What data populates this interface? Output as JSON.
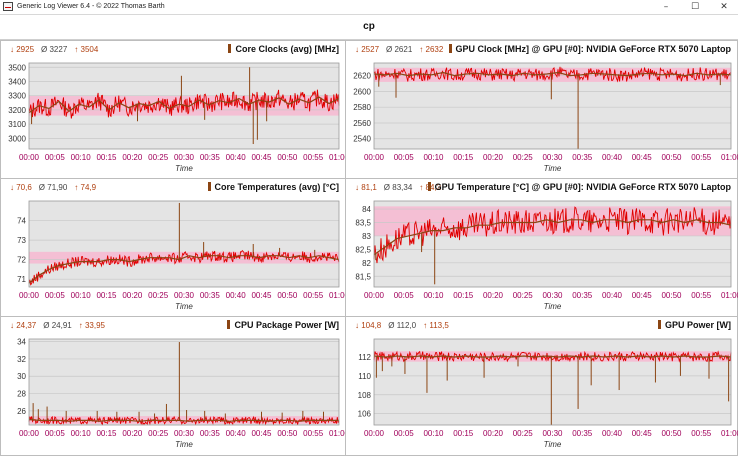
{
  "window": {
    "title": "Generic Log Viewer 6.4 - © 2022 Thomas Barth",
    "minimize_icon": "minimize-icon",
    "maximize_icon": "maximize-icon",
    "close_icon": "close-icon"
  },
  "page_title": "cp",
  "colors": {
    "series_line": "#e00000",
    "avg_line": "#8B4513",
    "band": "#f4bfd4",
    "plot_bg": "#e4e4e4",
    "grid": "#c8c8c8",
    "tick_text": "#a0005a",
    "stat_text": "#b04010"
  },
  "chart_data": [
    {
      "type": "line",
      "title": "Core Clocks (avg) [MHz]",
      "stats": {
        "min": "↓ 2925",
        "avg": "Ø 3227",
        "max": "↑ 3504"
      },
      "xlabel": "Time",
      "xticks": [
        "00:00",
        "00:05",
        "00:10",
        "00:15",
        "00:20",
        "00:25",
        "00:30",
        "00:35",
        "00:40",
        "00:45",
        "00:50",
        "00:55",
        "01:00"
      ],
      "yticks": [
        3000,
        3100,
        3200,
        3300,
        3400,
        3500
      ],
      "ytick_labels": [
        "3000",
        "3100",
        "3200",
        "3300",
        "3400",
        "3500"
      ],
      "ylim": [
        2925,
        3530
      ],
      "x_range_min": [
        0,
        60
      ],
      "band": [
        3160,
        3300
      ],
      "series": [
        {
          "values": [
            3180,
            3230,
            3210,
            3260,
            3190,
            3240,
            3220,
            3270,
            3200,
            3250,
            3215,
            3245,
            3230,
            3260,
            3210,
            3240,
            3225,
            3270,
            3235,
            3265,
            3250,
            3280,
            3240,
            3270,
            3255,
            3285,
            3240,
            3275,
            3250,
            3290,
            3245,
            3280
          ]
        }
      ],
      "spikes": [
        [
          0.5,
          3100
        ],
        [
          29.5,
          3440
        ],
        [
          42.7,
          3500
        ],
        [
          43.4,
          2960
        ],
        [
          44.2,
          2990
        ],
        [
          46,
          3120
        ],
        [
          21,
          3120
        ],
        [
          34,
          3130
        ]
      ]
    },
    {
      "type": "line",
      "title": "GPU Clock [MHz] @ GPU [#0]: NVIDIA GeForce RTX 5070 Laptop",
      "stats": {
        "min": "↓ 2527",
        "avg": "Ø 2621",
        "max": "↑ 2632"
      },
      "xlabel": "Time",
      "xticks": [
        "00:00",
        "00:05",
        "00:10",
        "00:15",
        "00:20",
        "00:25",
        "00:30",
        "00:35",
        "00:40",
        "00:45",
        "00:50",
        "00:55",
        "01:00"
      ],
      "yticks": [
        2540,
        2560,
        2580,
        2600,
        2620
      ],
      "ytick_labels": [
        "2540",
        "2560",
        "2580",
        "2600",
        "2620"
      ],
      "ylim": [
        2527,
        2636
      ],
      "x_range_min": [
        0,
        60
      ],
      "band": [
        2612,
        2630
      ],
      "series": [
        {
          "values": [
            2622,
            2621,
            2623,
            2620,
            2622,
            2621,
            2624,
            2620,
            2622,
            2623,
            2621,
            2622,
            2620,
            2623,
            2621,
            2622,
            2624,
            2620,
            2621,
            2623,
            2622,
            2621,
            2620,
            2622,
            2623,
            2621,
            2622,
            2620,
            2623,
            2621,
            2622,
            2621
          ]
        }
      ],
      "spikes": [
        [
          3.7,
          2592
        ],
        [
          29.8,
          2590
        ],
        [
          34.3,
          2527
        ],
        [
          0.8,
          2606
        ],
        [
          58.2,
          2608
        ]
      ]
    },
    {
      "type": "line",
      "title": "Core Temperatures (avg) [°C]",
      "stats": {
        "min": "↓ 70,6",
        "avg": "Ø 71,90",
        "max": "↑ 74,9"
      },
      "xlabel": "Time",
      "xticks": [
        "00:00",
        "00:05",
        "00:10",
        "00:15",
        "00:20",
        "00:25",
        "00:30",
        "00:35",
        "00:40",
        "00:45",
        "00:50",
        "00:55",
        "01:00"
      ],
      "yticks": [
        71,
        72,
        73,
        74
      ],
      "ytick_labels": [
        "71",
        "72",
        "73",
        "74"
      ],
      "ylim": [
        70.6,
        75.0
      ],
      "x_range_min": [
        0,
        60
      ],
      "band": [
        71.8,
        72.4
      ],
      "series": [
        {
          "values": [
            70.8,
            71.2,
            71.5,
            71.7,
            71.8,
            71.9,
            71.9,
            71.9,
            72.0,
            72.0,
            71.9,
            72.0,
            72.1,
            72.1,
            72.1,
            72.0,
            72.2,
            72.1,
            72.2,
            72.2,
            72.1,
            72.2,
            72.2,
            72.1,
            72.2,
            72.2,
            72.1,
            72.2,
            72.1,
            72.2,
            72.1,
            72.0
          ]
        }
      ],
      "spikes": [
        [
          29.1,
          74.9
        ],
        [
          33.8,
          72.9
        ],
        [
          43.4,
          72.8
        ],
        [
          48.5,
          72.6
        ],
        [
          55.3,
          72.5
        ]
      ]
    },
    {
      "type": "line",
      "title": "GPU Temperature [°C] @ GPU [#0]: NVIDIA GeForce RTX 5070 Laptop",
      "stats": {
        "min": "↓ 81,1",
        "avg": "Ø 83,34",
        "max": "↑ 84,2"
      },
      "xlabel": "Time",
      "xticks": [
        "00:00",
        "00:05",
        "00:10",
        "00:15",
        "00:20",
        "00:25",
        "00:30",
        "00:35",
        "00:40",
        "00:45",
        "00:50",
        "00:55",
        "01:00"
      ],
      "yticks": [
        81.5,
        82,
        82.5,
        83,
        83.5,
        84
      ],
      "ytick_labels": [
        "81,5",
        "82",
        "82,5",
        "83",
        "83,5",
        "84"
      ],
      "ylim": [
        81.1,
        84.3
      ],
      "x_range_min": [
        0,
        60
      ],
      "band": [
        83.0,
        84.1
      ],
      "series": [
        {
          "values": [
            82.3,
            82.6,
            82.9,
            83.0,
            83.1,
            83.2,
            83.2,
            83.3,
            83.3,
            83.4,
            83.4,
            83.5,
            83.5,
            83.5,
            83.5,
            83.6,
            83.5,
            83.6,
            83.6,
            83.5,
            83.6,
            83.6,
            83.5,
            83.6,
            83.6,
            83.5,
            83.6,
            83.5,
            83.6,
            83.5,
            83.5,
            83.4
          ]
        }
      ],
      "spikes": [
        [
          10.2,
          81.2
        ],
        [
          0.3,
          82.1
        ],
        [
          8,
          82.4
        ]
      ]
    },
    {
      "type": "line",
      "title": "CPU Package Power [W]",
      "stats": {
        "min": "↓ 24,37",
        "avg": "Ø 24,91",
        "max": "↑ 33,95"
      },
      "xlabel": "Time",
      "xticks": [
        "00:00",
        "00:05",
        "00:10",
        "00:15",
        "00:20",
        "00:25",
        "00:30",
        "00:35",
        "00:40",
        "00:45",
        "00:50",
        "00:55",
        "01:00"
      ],
      "yticks": [
        26,
        28,
        30,
        32,
        34
      ],
      "ytick_labels": [
        "26",
        "28",
        "30",
        "32",
        "34"
      ],
      "ylim": [
        24.37,
        34.3
      ],
      "x_range_min": [
        0,
        60
      ],
      "band": [
        24.5,
        25.4
      ],
      "series": [
        {
          "values": [
            25.0,
            24.9,
            24.9,
            24.9,
            24.8,
            24.9,
            24.9,
            24.8,
            24.9,
            24.9,
            24.9,
            24.8,
            24.9,
            24.9,
            24.9,
            24.9,
            24.8,
            24.9,
            24.9,
            24.9,
            24.8,
            24.9,
            24.9,
            24.9,
            24.8,
            24.9,
            24.9,
            24.8,
            24.9,
            24.9,
            24.9,
            24.9
          ]
        }
      ],
      "spikes": [
        [
          0.8,
          26.9
        ],
        [
          1.8,
          26.2
        ],
        [
          3.5,
          26.5
        ],
        [
          7.2,
          26.0
        ],
        [
          13.2,
          26.0
        ],
        [
          17.0,
          25.9
        ],
        [
          21.3,
          25.9
        ],
        [
          24.3,
          25.7
        ],
        [
          26.6,
          26.8
        ],
        [
          29.1,
          33.95
        ],
        [
          30.5,
          26.1
        ],
        [
          34,
          26.0
        ],
        [
          38,
          25.7
        ],
        [
          45,
          25.9
        ],
        [
          49,
          25.8
        ],
        [
          53,
          26.0
        ],
        [
          57,
          25.9
        ]
      ]
    },
    {
      "type": "line",
      "title": "GPU Power [W]",
      "stats": {
        "min": "↓ 104,8",
        "avg": "Ø 112,0",
        "max": "↑ 113,5"
      },
      "xlabel": "Time",
      "xticks": [
        "00:00",
        "00:05",
        "00:10",
        "00:15",
        "00:20",
        "00:25",
        "00:30",
        "00:35",
        "00:40",
        "00:45",
        "00:50",
        "00:55",
        "01:00"
      ],
      "yticks": [
        106,
        108,
        110,
        112
      ],
      "ytick_labels": [
        "106",
        "108",
        "110",
        "112"
      ],
      "ylim": [
        104.8,
        113.9
      ],
      "x_range_min": [
        0,
        60
      ],
      "band": [
        111.5,
        112.6
      ],
      "series": [
        {
          "values": [
            112.1,
            112.0,
            112.1,
            112.0,
            112.1,
            112.0,
            112.1,
            112.0,
            112.1,
            112.0,
            112.0,
            112.1,
            112.0,
            112.1,
            112.0,
            112.1,
            112.0,
            112.1,
            112.0,
            112.1,
            112.0,
            112.1,
            112.0,
            112.1,
            112.0,
            112.1,
            112.0,
            112.1,
            112.0,
            112.0,
            112.1,
            112.0
          ]
        }
      ],
      "spikes": [
        [
          0.4,
          109.8
        ],
        [
          1.4,
          110.5
        ],
        [
          3.0,
          111.0
        ],
        [
          5.2,
          110.2
        ],
        [
          8.9,
          108.2
        ],
        [
          12.3,
          109.5
        ],
        [
          18.5,
          109.8
        ],
        [
          24.2,
          111.0
        ],
        [
          29.8,
          104.8
        ],
        [
          34.3,
          106.5
        ],
        [
          36.5,
          109.0
        ],
        [
          41.2,
          108.5
        ],
        [
          47.3,
          109.3
        ],
        [
          51.5,
          110.0
        ],
        [
          56.3,
          109.7
        ],
        [
          59.6,
          107.3
        ]
      ]
    }
  ]
}
